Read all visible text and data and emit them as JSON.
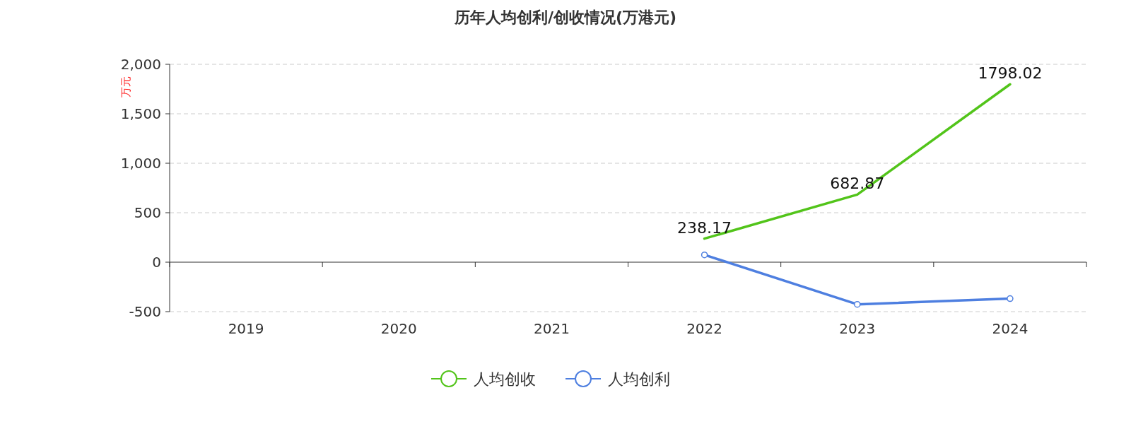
{
  "chart_data": {
    "type": "line",
    "title": "历年人均创利/创收情况(万港元)",
    "ylabel": "万元",
    "categories": [
      "2019",
      "2020",
      "2021",
      "2022",
      "2023",
      "2024"
    ],
    "ylim": [
      -500,
      2000
    ],
    "yticks": [
      {
        "value": -500,
        "label": "-500"
      },
      {
        "value": 0,
        "label": "0"
      },
      {
        "value": 500,
        "label": "500"
      },
      {
        "value": 1000,
        "label": "1,000"
      },
      {
        "value": 1500,
        "label": "1,500"
      },
      {
        "value": 2000,
        "label": "2,000"
      }
    ],
    "grid": "y",
    "legend": "bottom",
    "series": [
      {
        "name": "人均创收",
        "color": "#52c41a",
        "marker": "none",
        "values": [
          null,
          null,
          null,
          238.17,
          682.87,
          1798.02
        ],
        "value_labels": [
          null,
          null,
          null,
          "238.17",
          "682.87",
          "1798.02"
        ]
      },
      {
        "name": "人均创利",
        "color": "#4e7fe0",
        "marker": "circle",
        "values": [
          null,
          null,
          null,
          74,
          -426,
          -368
        ]
      }
    ]
  }
}
